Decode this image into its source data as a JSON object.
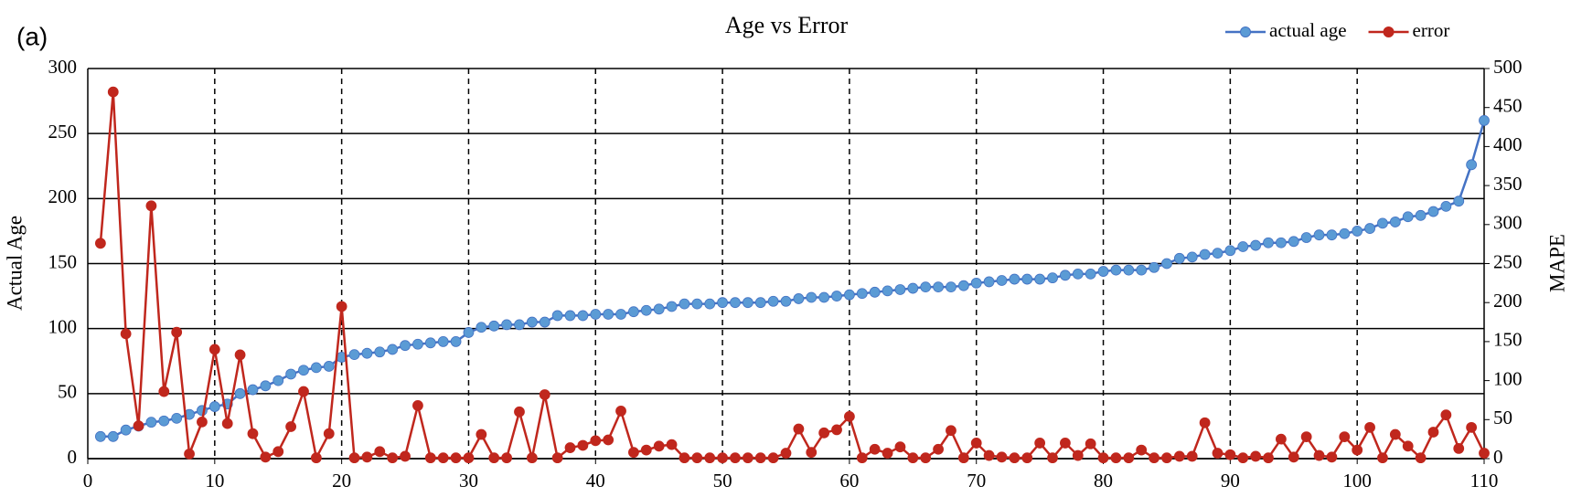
{
  "chart_data": {
    "type": "line",
    "title": "Age vs Error",
    "panel_label": "(a)",
    "ylabel": "Actual Age",
    "y2label": "MAPE",
    "x": [
      1,
      2,
      3,
      4,
      5,
      6,
      7,
      8,
      9,
      10,
      11,
      12,
      13,
      14,
      15,
      16,
      17,
      18,
      19,
      20,
      21,
      22,
      23,
      24,
      25,
      26,
      27,
      28,
      29,
      30,
      31,
      32,
      33,
      34,
      35,
      36,
      37,
      38,
      39,
      40,
      41,
      42,
      43,
      44,
      45,
      46,
      47,
      48,
      49,
      50,
      51,
      52,
      53,
      54,
      55,
      56,
      57,
      58,
      59,
      60,
      61,
      62,
      63,
      64,
      65,
      66,
      67,
      68,
      69,
      70,
      71,
      72,
      73,
      74,
      75,
      76,
      77,
      78,
      79,
      80,
      81,
      82,
      83,
      84,
      85,
      86,
      87,
      88,
      89,
      90,
      91,
      92,
      93,
      94,
      95,
      96,
      97,
      98,
      99,
      100,
      101,
      102,
      103,
      104,
      105,
      106,
      107,
      108,
      109,
      110
    ],
    "series": [
      {
        "name": "actual age",
        "color": "#5b9bd5",
        "line_color": "#4472c4",
        "axis": "y",
        "values": [
          17,
          17,
          22,
          25,
          28,
          29,
          31,
          34,
          37,
          40,
          42,
          50,
          53,
          56,
          60,
          65,
          68,
          70,
          71,
          78,
          80,
          81,
          82,
          84,
          87,
          88,
          89,
          90,
          90,
          97,
          101,
          102,
          103,
          103,
          105,
          105,
          110,
          110,
          110,
          111,
          111,
          111,
          113,
          114,
          115,
          117,
          119,
          119,
          119,
          120,
          120,
          120,
          120,
          121,
          121,
          123,
          124,
          124,
          125,
          126,
          127,
          128,
          129,
          130,
          131,
          132,
          132,
          132,
          133,
          135,
          136,
          137,
          138,
          138,
          138,
          139,
          141,
          142,
          142,
          144,
          145,
          145,
          145,
          147,
          150,
          154,
          155,
          157,
          158,
          160,
          163,
          164,
          166,
          166,
          167,
          170,
          172,
          172,
          173,
          175,
          177,
          181,
          182,
          186,
          187,
          190,
          194,
          198,
          226,
          260
        ]
      },
      {
        "name": "error",
        "color": "#c0271d",
        "line_color": "#c0271d",
        "axis": "y2",
        "values": [
          276,
          470,
          160,
          42,
          324,
          86,
          162,
          6,
          47,
          140,
          45,
          133,
          32,
          2,
          9,
          41,
          86,
          1,
          32,
          195,
          1,
          2,
          9,
          1,
          3,
          68,
          1,
          1,
          1,
          1,
          31,
          1,
          1,
          60,
          1,
          82,
          1,
          14,
          17,
          23,
          24,
          61,
          8,
          11,
          16,
          18,
          1,
          1,
          1,
          1,
          1,
          1,
          1,
          1,
          7,
          38,
          8,
          33,
          37,
          54,
          1,
          12,
          7,
          15,
          1,
          1,
          12,
          36,
          1,
          20,
          4,
          2,
          1,
          1,
          20,
          1,
          20,
          4,
          19,
          1,
          1,
          1,
          11,
          1,
          1,
          3,
          3,
          46,
          7,
          5,
          1,
          3,
          1,
          25,
          2,
          28,
          4,
          2,
          28,
          11,
          40,
          1,
          31,
          16,
          1,
          34,
          56,
          13,
          40,
          7
        ]
      }
    ],
    "xlim": [
      0,
      110
    ],
    "xticks": [
      0,
      10,
      20,
      30,
      40,
      50,
      60,
      70,
      80,
      90,
      100,
      110
    ],
    "ylim": [
      0,
      300
    ],
    "yticks": [
      0,
      50,
      100,
      150,
      200,
      250,
      300
    ],
    "y2lim": [
      0,
      500
    ],
    "y2ticks": [
      0,
      50,
      100,
      150,
      200,
      250,
      300,
      350,
      400,
      450,
      500
    ],
    "grid": true,
    "legend": "top-right"
  }
}
